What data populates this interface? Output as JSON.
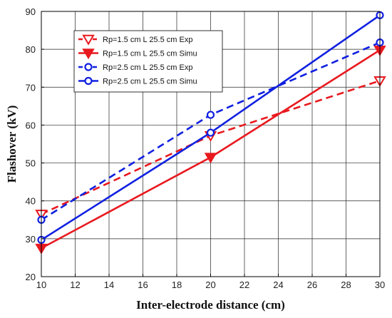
{
  "chart_data": {
    "type": "line",
    "xlabel": "Inter-electrode distance (cm)",
    "ylabel": "Flashover (kV)",
    "xlim": [
      10,
      30
    ],
    "ylim": [
      20,
      90
    ],
    "xticks": [
      10,
      12,
      14,
      16,
      18,
      20,
      22,
      24,
      26,
      28,
      30
    ],
    "yticks": [
      20,
      30,
      40,
      50,
      60,
      70,
      80,
      90
    ],
    "grid": true,
    "legend_position": "top-left",
    "series": [
      {
        "name": "Rp=1.5 cm L 25.5 cm Exp",
        "color": "#e8191f",
        "line": "dashed",
        "marker": "triangle-down-open",
        "x": [
          10,
          20,
          30
        ],
        "y": [
          36.5,
          57.2,
          71.7
        ]
      },
      {
        "name": "Rp=1.5 cm L 25.5 cm Simu",
        "color": "#e8191f",
        "line": "solid",
        "marker": "triangle-down-filled",
        "x": [
          10,
          20,
          30
        ],
        "y": [
          27.5,
          51.5,
          79.8
        ]
      },
      {
        "name": "Rp=2.5 cm L 25.5 cm Exp",
        "color": "#1020e0",
        "line": "dashed",
        "marker": "circle-open",
        "x": [
          10,
          20,
          30
        ],
        "y": [
          35.0,
          62.7,
          81.8
        ]
      },
      {
        "name": "Rp=2.5 cm L 25.5 cm Simu",
        "color": "#1020e0",
        "line": "solid",
        "marker": "circle-open",
        "x": [
          10,
          20,
          30
        ],
        "y": [
          29.7,
          58.0,
          89.0
        ]
      }
    ]
  }
}
